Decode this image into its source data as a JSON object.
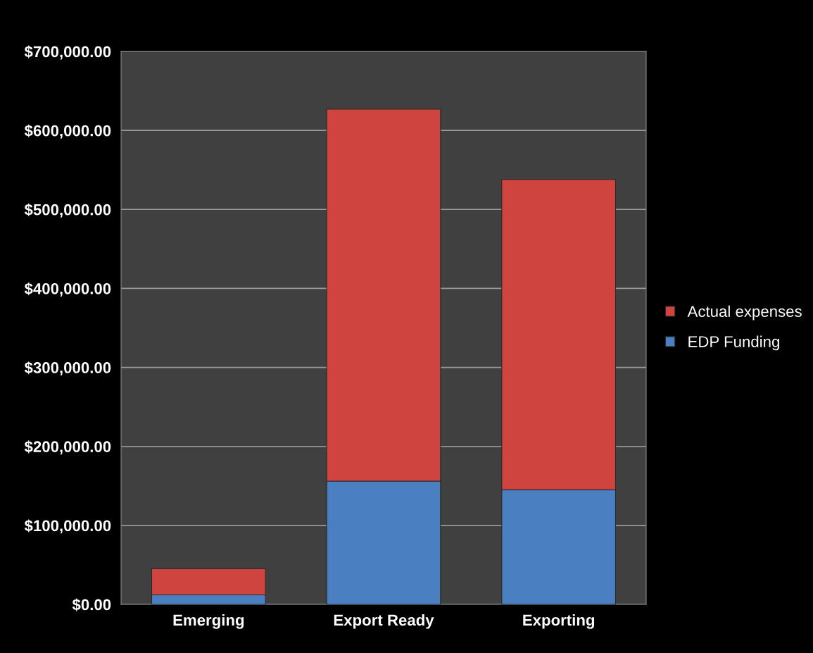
{
  "chart_data": {
    "type": "bar",
    "stacked": true,
    "categories": [
      "Emerging",
      "Export Ready",
      "Exporting"
    ],
    "series": [
      {
        "name": "EDP Funding",
        "color": "#4a7fc1",
        "values": [
          12000,
          156000,
          145000
        ]
      },
      {
        "name": "Actual expenses",
        "color": "#d04440",
        "values": [
          33000,
          471000,
          393000
        ]
      }
    ],
    "ylim": [
      0,
      700000
    ],
    "yticks": [
      {
        "value": 0,
        "label": "$0.00"
      },
      {
        "value": 100000,
        "label": "$100,000.00"
      },
      {
        "value": 200000,
        "label": "$200,000.00"
      },
      {
        "value": 300000,
        "label": "$300,000.00"
      },
      {
        "value": 400000,
        "label": "$400,000.00"
      },
      {
        "value": 500000,
        "label": "$500,000.00"
      },
      {
        "value": 600000,
        "label": "$600,000.00"
      },
      {
        "value": 700000,
        "label": "$700,000.00"
      }
    ],
    "grid": "y",
    "legend": "right"
  }
}
